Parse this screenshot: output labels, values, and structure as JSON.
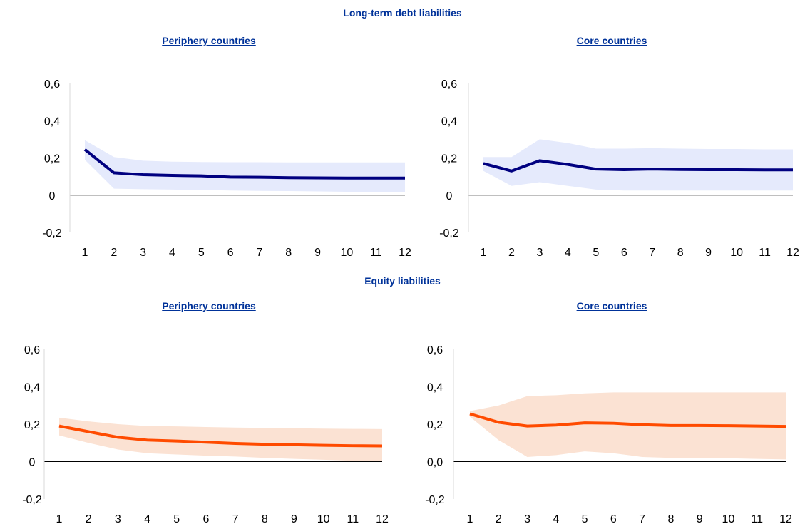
{
  "sections": [
    {
      "title": "Long-term debt liabilities"
    },
    {
      "title": "Equity liabilities"
    }
  ],
  "colors": {
    "debt_line": "#000080",
    "debt_band": "#e5eafc",
    "equity_line": "#ff4b00",
    "equity_band": "#fbe2d3",
    "title": "#003299"
  },
  "chart_data": [
    {
      "type": "area",
      "section": "Long-term debt liabilities",
      "title": "Periphery countries",
      "xlabel": "",
      "ylabel": "",
      "x": [
        1,
        2,
        3,
        4,
        5,
        6,
        7,
        8,
        9,
        10,
        11,
        12
      ],
      "y": [
        0.245,
        0.12,
        0.11,
        0.106,
        0.104,
        0.097,
        0.096,
        0.094,
        0.093,
        0.092,
        0.092,
        0.092
      ],
      "lower": [
        0.19,
        0.035,
        0.032,
        0.03,
        0.028,
        0.025,
        0.023,
        0.022,
        0.02,
        0.018,
        0.017,
        0.016
      ],
      "upper": [
        0.295,
        0.205,
        0.185,
        0.18,
        0.178,
        0.177,
        0.177,
        0.176,
        0.176,
        0.176,
        0.176,
        0.176
      ],
      "ylim": [
        -0.2,
        0.6
      ],
      "yticks": [
        "-0,2",
        "0",
        "0,2",
        "0,4",
        "0,6"
      ],
      "xticks": [
        "1",
        "2",
        "3",
        "4",
        "5",
        "6",
        "7",
        "8",
        "9",
        "10",
        "11",
        "12"
      ],
      "grid": false
    },
    {
      "type": "area",
      "section": "Long-term debt liabilities",
      "title": "Core countries",
      "xlabel": "",
      "ylabel": "",
      "x": [
        1,
        2,
        3,
        4,
        5,
        6,
        7,
        8,
        9,
        10,
        11,
        12
      ],
      "y": [
        0.17,
        0.13,
        0.185,
        0.165,
        0.14,
        0.137,
        0.14,
        0.138,
        0.137,
        0.137,
        0.136,
        0.136
      ],
      "lower": [
        0.13,
        0.05,
        0.07,
        0.05,
        0.03,
        0.025,
        0.025,
        0.025,
        0.025,
        0.025,
        0.025,
        0.025
      ],
      "upper": [
        0.205,
        0.205,
        0.3,
        0.28,
        0.25,
        0.25,
        0.252,
        0.25,
        0.248,
        0.248,
        0.246,
        0.246
      ],
      "ylim": [
        -0.2,
        0.6
      ],
      "yticks": [
        "-0,2",
        "0",
        "0,2",
        "0,4",
        "0,6"
      ],
      "xticks": [
        "1",
        "2",
        "3",
        "4",
        "5",
        "6",
        "7",
        "8",
        "9",
        "10",
        "11",
        "12"
      ],
      "grid": false
    },
    {
      "type": "area",
      "section": "Equity liabilities",
      "title": "Periphery countries",
      "xlabel": "",
      "ylabel": "",
      "x": [
        1,
        2,
        3,
        4,
        5,
        6,
        7,
        8,
        9,
        10,
        11,
        12
      ],
      "y": [
        0.19,
        0.16,
        0.13,
        0.115,
        0.11,
        0.104,
        0.097,
        0.093,
        0.09,
        0.087,
        0.085,
        0.084
      ],
      "lower": [
        0.14,
        0.1,
        0.065,
        0.045,
        0.038,
        0.032,
        0.027,
        0.02,
        0.015,
        0.01,
        0.005,
        0.002
      ],
      "upper": [
        0.235,
        0.215,
        0.2,
        0.19,
        0.188,
        0.185,
        0.182,
        0.18,
        0.178,
        0.176,
        0.175,
        0.174
      ],
      "ylim": [
        -0.2,
        0.6
      ],
      "yticks": [
        "-0,2",
        "0",
        "0,2",
        "0,4",
        "0,6"
      ],
      "xticks": [
        "1",
        "2",
        "3",
        "4",
        "5",
        "6",
        "7",
        "8",
        "9",
        "10",
        "11",
        "12"
      ],
      "grid": false
    },
    {
      "type": "area",
      "section": "Equity liabilities",
      "title": "Core countries",
      "xlabel": "",
      "ylabel": "",
      "x": [
        1,
        2,
        3,
        4,
        5,
        6,
        7,
        8,
        9,
        10,
        11,
        12
      ],
      "y": [
        0.255,
        0.21,
        0.19,
        0.195,
        0.207,
        0.205,
        0.197,
        0.193,
        0.193,
        0.192,
        0.19,
        0.188
      ],
      "lower": [
        0.24,
        0.115,
        0.025,
        0.035,
        0.055,
        0.045,
        0.025,
        0.02,
        0.02,
        0.018,
        0.015,
        0.012
      ],
      "upper": [
        0.27,
        0.3,
        0.35,
        0.355,
        0.365,
        0.37,
        0.37,
        0.37,
        0.37,
        0.37,
        0.37,
        0.37
      ],
      "ylim": [
        -0.2,
        0.6
      ],
      "yticks": [
        "-0,2",
        "0,0",
        "0,2",
        "0,4",
        "0,6"
      ],
      "xticks": [
        "1",
        "2",
        "3",
        "4",
        "5",
        "6",
        "7",
        "8",
        "9",
        "10",
        "11",
        "12"
      ],
      "grid": false
    }
  ]
}
